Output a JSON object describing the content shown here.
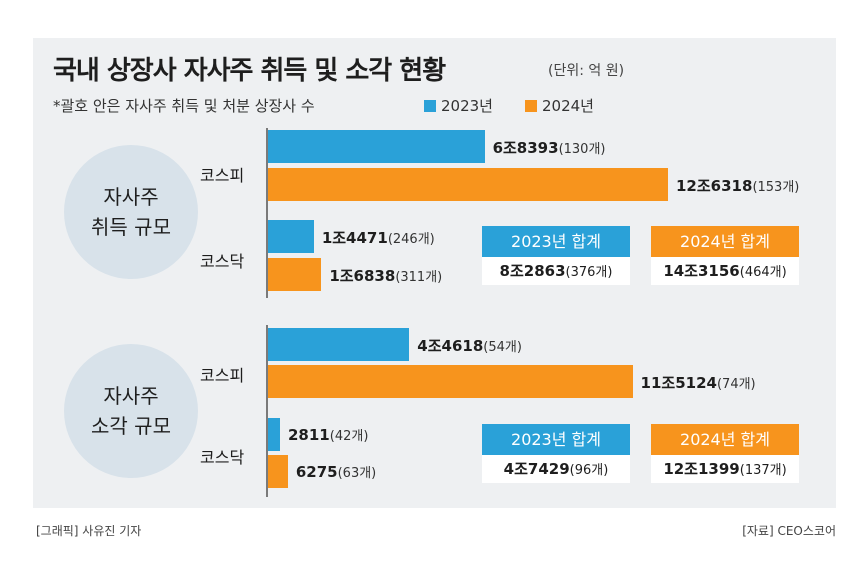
{
  "title": "국내 상장사 자사주 취득 및 소각 현황",
  "unit": "(단위: 억 원)",
  "note": "*괄호 안은 자사주 취득 및 처분 상장사 수",
  "legend": {
    "s2023": "2023년",
    "s2024": "2024년"
  },
  "colors": {
    "c2023": "#2aa1d8",
    "c2024": "#f7941d",
    "circle": "#d8e2ea",
    "panel": "#eef0f2"
  },
  "sections": [
    {
      "label_line1": "자사주",
      "label_line2": "취득 규모"
    },
    {
      "label_line1": "자사주",
      "label_line2": "소각 규모"
    }
  ],
  "chart_data": [
    {
      "type": "bar",
      "title": "자사주 취득 규모",
      "categories": [
        "코스피",
        "코스닥"
      ],
      "series": [
        {
          "name": "2023년",
          "values": [
            68393,
            14471
          ],
          "labels": [
            "6조8393",
            "1조4471"
          ],
          "counts": [
            "(130개)",
            "(246개)"
          ]
        },
        {
          "name": "2024년",
          "values": [
            126318,
            16838
          ],
          "labels": [
            "12조6318",
            "1조6838"
          ],
          "counts": [
            "(153개)",
            "(311개)"
          ]
        }
      ],
      "totals": [
        {
          "header": "2023년 합계",
          "value": "8조2863",
          "count": "(376개)"
        },
        {
          "header": "2024년 합계",
          "value": "14조3156",
          "count": "(464개)"
        }
      ]
    },
    {
      "type": "bar",
      "title": "자사주 소각 규모",
      "categories": [
        "코스피",
        "코스닥"
      ],
      "series": [
        {
          "name": "2023년",
          "values": [
            44618,
            2811
          ],
          "labels": [
            "4조4618",
            "2811"
          ],
          "counts": [
            "(54개)",
            "(42개)"
          ]
        },
        {
          "name": "2024년",
          "values": [
            115124,
            6275
          ],
          "labels": [
            "11조5124",
            "6275"
          ],
          "counts": [
            "(74개)",
            "(63개)"
          ]
        }
      ],
      "totals": [
        {
          "header": "2023년 합계",
          "value": "4조7429",
          "count": "(96개)"
        },
        {
          "header": "2024년 합계",
          "value": "12조1399",
          "count": "(137개)"
        }
      ]
    }
  ],
  "footer": {
    "left": "[그래픽] 사유진 기자",
    "right": "[자료] CEO스코어"
  }
}
